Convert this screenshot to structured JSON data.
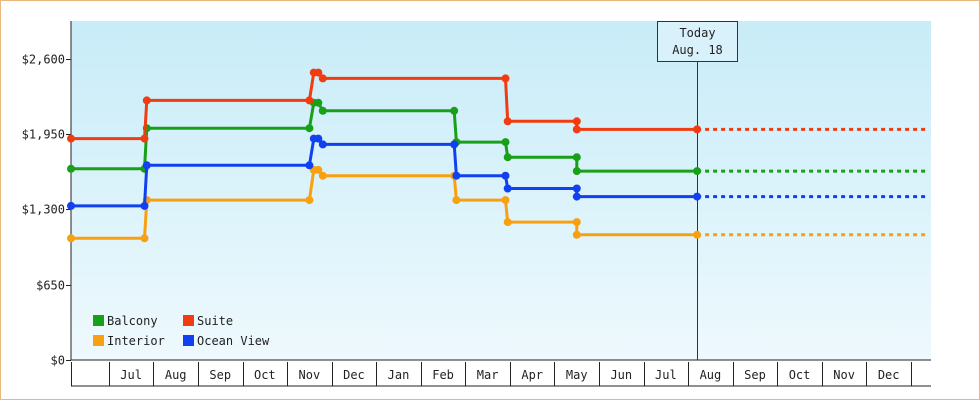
{
  "chart_data": {
    "type": "line",
    "step": true,
    "ylim": [
      0,
      2925
    ],
    "yticks": [
      0,
      650,
      1300,
      1950,
      2600
    ],
    "ytick_labels": [
      "$0",
      "$650",
      "$1,300",
      "$1,950",
      "$2,600"
    ],
    "months": [
      "Jul",
      "Aug",
      "Sep",
      "Oct",
      "Nov",
      "Dec",
      "Jan",
      "Feb",
      "Mar",
      "Apr",
      "May",
      "Jun",
      "Jul",
      "Aug",
      "Sep",
      "Oct",
      "Nov",
      "Dec"
    ],
    "today": {
      "line1": "Today",
      "line2": "Aug. 18",
      "x": 14.05
    },
    "xlim": [
      0.0,
      19.3
    ],
    "grid": false,
    "background": [
      "#c8ecf8",
      "#eef9fd"
    ],
    "legend_position": "bottom-left",
    "series": [
      {
        "name": "Balcony",
        "color": "#18a018",
        "points": [
          [
            0.0,
            1650
          ],
          [
            1.65,
            1650
          ],
          [
            1.7,
            2000
          ],
          [
            5.35,
            2000
          ],
          [
            5.45,
            2220
          ],
          [
            5.55,
            2220
          ],
          [
            5.65,
            2150
          ],
          [
            8.6,
            2150
          ],
          [
            8.65,
            1880
          ],
          [
            9.75,
            1880
          ],
          [
            9.8,
            1750
          ],
          [
            11.35,
            1750
          ],
          [
            11.35,
            1630
          ],
          [
            14.05,
            1630
          ]
        ],
        "forecast": [
          [
            14.05,
            1630
          ],
          [
            19.2,
            1630
          ]
        ]
      },
      {
        "name": "Suite",
        "color": "#f03c10",
        "points": [
          [
            0.0,
            1910
          ],
          [
            1.65,
            1910
          ],
          [
            1.7,
            2240
          ],
          [
            5.35,
            2240
          ],
          [
            5.45,
            2480
          ],
          [
            5.55,
            2480
          ],
          [
            5.65,
            2430
          ],
          [
            9.75,
            2430
          ],
          [
            9.8,
            2060
          ],
          [
            11.35,
            2060
          ],
          [
            11.35,
            1990
          ],
          [
            14.05,
            1990
          ]
        ],
        "forecast": [
          [
            14.05,
            1990
          ],
          [
            19.2,
            1990
          ]
        ]
      },
      {
        "name": "Interior",
        "color": "#f8a010",
        "points": [
          [
            0.0,
            1050
          ],
          [
            1.65,
            1050
          ],
          [
            1.7,
            1380
          ],
          [
            5.35,
            1380
          ],
          [
            5.45,
            1640
          ],
          [
            5.55,
            1640
          ],
          [
            5.65,
            1590
          ],
          [
            8.6,
            1590
          ],
          [
            8.65,
            1380
          ],
          [
            9.75,
            1380
          ],
          [
            9.8,
            1190
          ],
          [
            11.35,
            1190
          ],
          [
            11.35,
            1080
          ],
          [
            14.05,
            1080
          ]
        ],
        "forecast": [
          [
            14.05,
            1080
          ],
          [
            19.2,
            1080
          ]
        ]
      },
      {
        "name": "Ocean View",
        "color": "#1040f0",
        "points": [
          [
            0.0,
            1330
          ],
          [
            1.65,
            1330
          ],
          [
            1.7,
            1680
          ],
          [
            5.35,
            1680
          ],
          [
            5.45,
            1910
          ],
          [
            5.55,
            1910
          ],
          [
            5.65,
            1860
          ],
          [
            8.6,
            1860
          ],
          [
            8.65,
            1590
          ],
          [
            9.75,
            1590
          ],
          [
            9.8,
            1480
          ],
          [
            11.35,
            1480
          ],
          [
            11.35,
            1410
          ],
          [
            14.05,
            1410
          ]
        ],
        "forecast": [
          [
            14.05,
            1410
          ],
          [
            19.2,
            1410
          ]
        ]
      }
    ]
  }
}
